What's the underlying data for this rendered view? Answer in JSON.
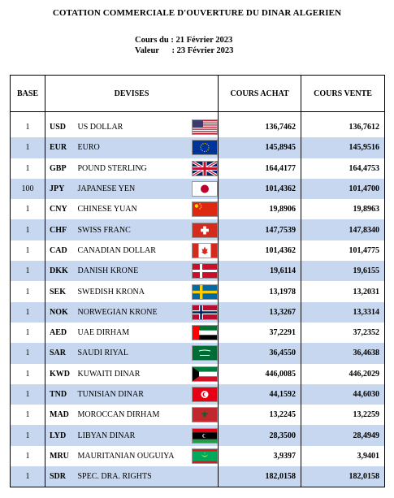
{
  "title": "COTATION COMMERCIALE D'OUVERTURE DU DINAR ALGERIEN",
  "dates": {
    "cours_label": "Cours du",
    "cours_date": "21 Février 2023",
    "valeur_label": "Valeur",
    "valeur_date": "23 Février 2023"
  },
  "headers": {
    "base": "BASE",
    "devises": "DEVISES",
    "achat": "COURS ACHAT",
    "vente": "COURS VENTE"
  },
  "rows": [
    {
      "base": "1",
      "code": "USD",
      "name": "US DOLLAR",
      "flag": "us-flag-icon",
      "achat": "136,7462",
      "vente": "136,7612"
    },
    {
      "base": "1",
      "code": "EUR",
      "name": "EURO",
      "flag": "eu-flag-icon",
      "achat": "145,8945",
      "vente": "145,9516"
    },
    {
      "base": "1",
      "code": "GBP",
      "name": "POUND STERLING",
      "flag": "uk-flag-icon",
      "achat": "164,4177",
      "vente": "164,4753"
    },
    {
      "base": "100",
      "code": "JPY",
      "name": "JAPANESE YEN",
      "flag": "japan-flag-icon",
      "achat": "101,4362",
      "vente": "101,4700"
    },
    {
      "base": "1",
      "code": "CNY",
      "name": "CHINESE YUAN",
      "flag": "china-flag-icon",
      "achat": "19,8906",
      "vente": "19,8963"
    },
    {
      "base": "1",
      "code": "CHF",
      "name": "SWISS FRANC",
      "flag": "switzerland-flag-icon",
      "achat": "147,7539",
      "vente": "147,8340"
    },
    {
      "base": "1",
      "code": "CAD",
      "name": "CANADIAN DOLLAR",
      "flag": "canada-flag-icon",
      "achat": "101,4362",
      "vente": "101,4775"
    },
    {
      "base": "1",
      "code": "DKK",
      "name": "DANISH KRONE",
      "flag": "denmark-flag-icon",
      "achat": "19,6114",
      "vente": "19,6155"
    },
    {
      "base": "1",
      "code": "SEK",
      "name": "SWEDISH KRONA",
      "flag": "sweden-flag-icon",
      "achat": "13,1978",
      "vente": "13,2031"
    },
    {
      "base": "1",
      "code": "NOK",
      "name": "NORWEGIAN KRONE",
      "flag": "norway-flag-icon",
      "achat": "13,3267",
      "vente": "13,3314"
    },
    {
      "base": "1",
      "code": "AED",
      "name": "UAE DIRHAM",
      "flag": "uae-flag-icon",
      "achat": "37,2291",
      "vente": "37,2352"
    },
    {
      "base": "1",
      "code": "SAR",
      "name": "SAUDI RIYAL",
      "flag": "saudi-flag-icon",
      "achat": "36,4550",
      "vente": "36,4638"
    },
    {
      "base": "1",
      "code": "KWD",
      "name": "KUWAITI DINAR",
      "flag": "kuwait-flag-icon",
      "achat": "446,0085",
      "vente": "446,2029"
    },
    {
      "base": "1",
      "code": "TND",
      "name": "TUNISIAN DINAR",
      "flag": "tunisia-flag-icon",
      "achat": "44,1592",
      "vente": "44,6030"
    },
    {
      "base": "1",
      "code": "MAD",
      "name": "MOROCCAN DIRHAM",
      "flag": "morocco-flag-icon",
      "achat": "13,2245",
      "vente": "13,2259"
    },
    {
      "base": "1",
      "code": "LYD",
      "name": "LIBYAN DINAR",
      "flag": "libya-flag-icon",
      "achat": "28,3500",
      "vente": "28,4949"
    },
    {
      "base": "1",
      "code": "MRU",
      "name": "MAURITANIAN OUGUIYA",
      "flag": "mauritania-flag-icon",
      "achat": "3,9397",
      "vente": "3,9401"
    },
    {
      "base": "1",
      "code": "SDR",
      "name": "SPEC. DRA. RIGHTS",
      "flag": "",
      "achat": "182,0158",
      "vente": "182,0158"
    }
  ]
}
